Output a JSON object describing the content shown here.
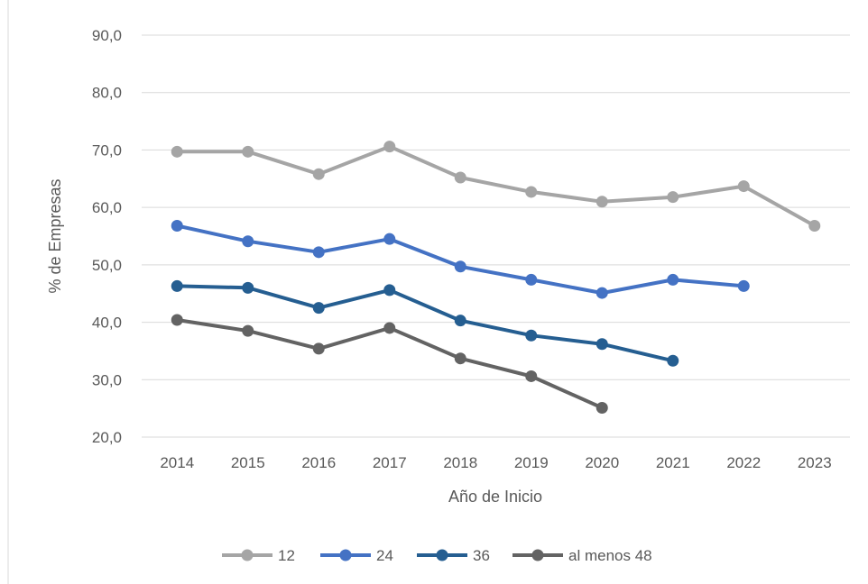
{
  "chart_data": {
    "type": "line",
    "title": "",
    "xlabel": "Año de Inicio",
    "ylabel": "% de Empresas",
    "categories": [
      "2014",
      "2015",
      "2016",
      "2017",
      "2018",
      "2019",
      "2020",
      "2021",
      "2022",
      "2023"
    ],
    "ylim": [
      20,
      90
    ],
    "yticks": [
      20,
      30,
      40,
      50,
      60,
      70,
      80,
      90
    ],
    "ytick_labels": [
      "20,0",
      "30,0",
      "40,0",
      "50,0",
      "60,0",
      "70,0",
      "80,0",
      "90,0"
    ],
    "grid": true,
    "legend_position": "bottom",
    "series": [
      {
        "name": "12",
        "color": "#a5a5a5",
        "values": [
          69.7,
          69.7,
          65.8,
          70.6,
          65.2,
          62.7,
          61.0,
          61.8,
          63.7,
          56.8
        ]
      },
      {
        "name": "24",
        "color": "#4472c4",
        "values": [
          56.8,
          54.1,
          52.2,
          54.5,
          49.7,
          47.4,
          45.1,
          47.4,
          46.3,
          null
        ]
      },
      {
        "name": "36",
        "color": "#255e91",
        "values": [
          46.3,
          46.0,
          42.5,
          45.6,
          40.3,
          37.7,
          36.2,
          33.3,
          null,
          null
        ]
      },
      {
        "name": "al menos 48",
        "color": "#636363",
        "values": [
          40.4,
          38.5,
          35.4,
          39.0,
          33.7,
          30.6,
          25.1,
          null,
          null,
          null
        ]
      }
    ]
  }
}
